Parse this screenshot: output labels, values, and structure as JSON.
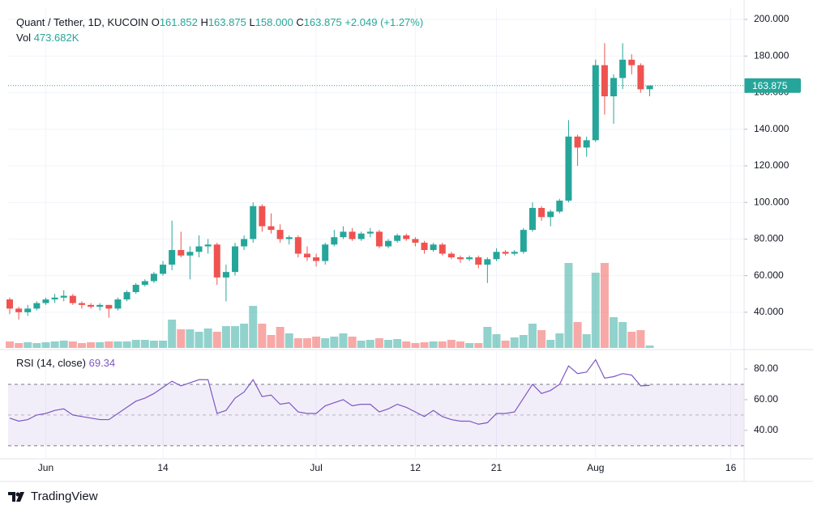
{
  "chart_data": {
    "type": "candlestick",
    "title": "Quant / Tether, 1D, KUCOIN",
    "legend_letters": [
      "O",
      "H",
      "L",
      "C"
    ],
    "legend_values": [
      "161.852",
      "163.875",
      "158.000",
      "163.875"
    ],
    "change": "+2.049 (+1.27%)",
    "volume_title": "Vol",
    "volume_label": "473.682K",
    "brand": "TradingView",
    "up_color": "#26a69a",
    "down_color": "#ef5350",
    "grid": true,
    "categories": [
      null,
      null,
      null,
      null,
      "Jun",
      null,
      null,
      null,
      null,
      null,
      null,
      null,
      null,
      null,
      null,
      null,
      null,
      "14",
      null,
      null,
      null,
      null,
      null,
      null,
      null,
      null,
      null,
      null,
      null,
      null,
      null,
      null,
      null,
      null,
      "Jul",
      null,
      null,
      null,
      null,
      null,
      null,
      null,
      null,
      null,
      null,
      "12",
      null,
      null,
      null,
      null,
      null,
      null,
      null,
      null,
      "21",
      null,
      null,
      null,
      null,
      null,
      null,
      null,
      null,
      null,
      null,
      "Aug",
      null,
      null,
      null,
      null,
      null,
      null,
      null,
      null,
      null,
      null,
      null,
      null,
      null,
      null,
      "16",
      null,
      null
    ],
    "open": [
      47,
      42,
      40,
      42,
      45,
      47,
      48,
      49,
      45,
      44,
      43,
      44,
      42,
      47,
      51,
      55,
      57,
      61,
      66,
      74,
      71,
      73,
      76,
      77,
      59,
      62,
      76,
      80,
      98,
      87,
      85,
      80,
      81,
      72,
      70,
      68,
      77,
      81,
      84,
      80,
      83,
      84,
      76,
      79,
      82,
      80,
      78,
      74,
      77,
      72,
      70,
      69,
      70,
      66,
      69,
      73,
      72,
      73,
      85,
      97,
      92,
      95,
      101,
      136,
      130,
      134,
      175,
      158,
      168,
      178,
      175,
      161.852,
      null,
      null,
      null,
      null,
      null,
      null,
      null,
      null,
      null,
      null,
      null
    ],
    "high": [
      48,
      43,
      44,
      46,
      48,
      50,
      52,
      50,
      46,
      45,
      45,
      44,
      48,
      52,
      56,
      58,
      62,
      68,
      90,
      84,
      76,
      82,
      80,
      78,
      66,
      78,
      82,
      100,
      99,
      94,
      88,
      82,
      82,
      76,
      72,
      78,
      85,
      87,
      86,
      84,
      86,
      85,
      80,
      83,
      83,
      81,
      79,
      78,
      78,
      73,
      71,
      71,
      71,
      70,
      75,
      74,
      74,
      86,
      100,
      98,
      96,
      102,
      145,
      137,
      136,
      178,
      187,
      170,
      187,
      181,
      176,
      163.875,
      null,
      null,
      null,
      null,
      null,
      null,
      null,
      null,
      null,
      null,
      null
    ],
    "low": [
      39,
      36,
      38,
      41,
      44,
      45,
      46,
      44,
      42,
      42,
      41,
      37,
      41,
      46,
      50,
      54,
      56,
      60,
      63,
      70,
      58,
      70,
      72,
      55,
      46,
      60,
      74,
      78,
      84,
      83,
      78,
      77,
      70,
      68,
      65,
      66,
      76,
      80,
      79,
      79,
      81,
      75,
      75,
      78,
      79,
      76,
      72,
      73,
      71,
      69,
      67,
      68,
      64,
      56,
      68,
      71,
      71,
      72,
      84,
      90,
      87,
      94,
      100,
      120,
      125,
      133,
      148,
      143,
      162,
      170,
      160,
      158,
      null,
      null,
      null,
      null,
      null,
      null,
      null,
      null,
      null,
      null,
      null
    ],
    "close": [
      42,
      40,
      42,
      45,
      47,
      48,
      49,
      45,
      44,
      43,
      44,
      42,
      47,
      51,
      55,
      57,
      61,
      66,
      74,
      71,
      73,
      76,
      77,
      59,
      62,
      76,
      80,
      98,
      87,
      85,
      80,
      81,
      72,
      70,
      68,
      77,
      81,
      84,
      80,
      83,
      84,
      76,
      79,
      82,
      80,
      78,
      74,
      77,
      72,
      70,
      69,
      70,
      66,
      69,
      73,
      72,
      73,
      85,
      97,
      92,
      95,
      101,
      136,
      130,
      134,
      175,
      158,
      168,
      178,
      175,
      161.826,
      163.875,
      null,
      null,
      null,
      null,
      null,
      null,
      null,
      null,
      null,
      null,
      null
    ],
    "volume": [
      1280000,
      960000,
      1120000,
      960000,
      1120000,
      1280000,
      1440000,
      1280000,
      960000,
      1120000,
      1120000,
      1280000,
      1280000,
      1280000,
      1600000,
      1600000,
      1440000,
      1440000,
      5600000,
      3680000,
      3680000,
      3200000,
      3840000,
      3200000,
      4320000,
      4320000,
      4800000,
      8320000,
      4800000,
      2560000,
      4160000,
      2880000,
      1920000,
      1920000,
      2240000,
      1920000,
      2240000,
      2880000,
      2240000,
      1440000,
      1600000,
      1920000,
      1600000,
      1760000,
      1280000,
      960000,
      1120000,
      1280000,
      1280000,
      1600000,
      1280000,
      960000,
      960000,
      4160000,
      2720000,
      1440000,
      2080000,
      2560000,
      4800000,
      3520000,
      1600000,
      2880000,
      16800000,
      5120000,
      2720000,
      14880000,
      16800000,
      6080000,
      5120000,
      3200000,
      3520000,
      473682,
      null,
      null,
      null,
      null,
      null,
      null,
      null,
      null,
      null,
      null,
      null
    ],
    "ylim": [
      20.5,
      206.2
    ],
    "yticks": [
      {
        "value": 40,
        "label": "40.000"
      },
      {
        "value": 60,
        "label": "60.000"
      },
      {
        "value": 80,
        "label": "80.000"
      },
      {
        "value": 100,
        "label": "100.000"
      },
      {
        "value": 120,
        "label": "120.000"
      },
      {
        "value": 140,
        "label": "140.000"
      },
      {
        "value": 160,
        "label": "160.000"
      },
      {
        "value": 180,
        "label": "180.000"
      },
      {
        "value": 200,
        "label": "200.000"
      }
    ],
    "rsi": {
      "title": "RSI (14, close)",
      "color": "#7e57c2",
      "values": [
        48,
        46,
        47,
        50,
        51,
        53,
        54,
        50,
        49,
        48,
        47,
        47,
        51,
        55,
        59,
        61,
        64,
        68,
        72,
        69,
        71,
        73,
        73,
        51,
        53,
        61,
        65,
        73,
        62,
        63,
        57,
        58,
        52,
        51,
        51,
        56,
        58,
        60,
        56,
        57,
        57,
        52,
        54,
        57,
        55,
        52,
        49,
        53,
        49,
        47,
        46,
        46,
        44,
        45,
        51,
        51,
        52,
        61,
        70,
        64,
        66,
        70,
        82,
        77,
        78,
        86,
        74,
        75,
        77,
        76,
        69,
        69.34,
        null,
        null,
        null,
        null,
        null,
        null,
        null,
        null,
        null,
        null,
        null
      ],
      "ylim": [
        22,
        91.6
      ],
      "yticks": [
        {
          "value": 40,
          "label": "40.00"
        },
        {
          "value": 60,
          "label": "60.00"
        },
        {
          "value": 80,
          "label": "80.00"
        }
      ],
      "levels": [
        70,
        50,
        30
      ]
    }
  }
}
